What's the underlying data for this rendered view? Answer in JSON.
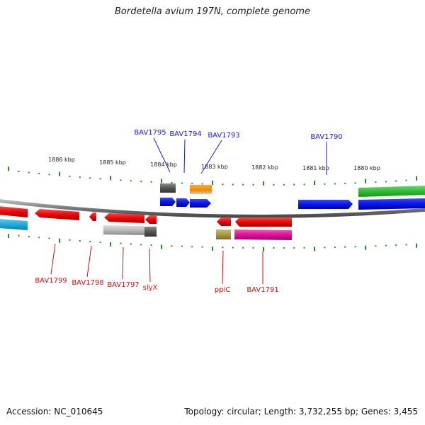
{
  "title": "Bordetella avium 197N, complete genome",
  "footer": {
    "accession": "Accession: NC_010645",
    "topology": "Topology: circular; Length: 3,732,255 bp; Genes: 3,455"
  },
  "scale_labels": [
    "1886 kbp",
    "1885 kbp",
    "1884 kbp",
    "1883 kbp",
    "1882 kbp",
    "1881 kbp",
    "1880 kbp"
  ],
  "gene_labels": {
    "forward": [
      "BAV1795",
      "BAV1794",
      "BAV1793",
      "BAV1790"
    ],
    "reverse": [
      "BAV1799",
      "BAV1798",
      "BAV1797",
      "slyX",
      "ppiC",
      "BAV1791"
    ]
  },
  "colors": {
    "forward_label": "#1a1acc",
    "reverse_label": "#cc1111",
    "tick": "#2a8a2a",
    "backbone": "#888888",
    "cds_forward": "#0a1aee",
    "cds_reverse": "#ee0a0a",
    "green_block": "#33bb33",
    "cyan_block": "#22aadd",
    "gray_block": "#b8b8b8",
    "dark_gray_block": "#555555",
    "orange_block": "#ee8800",
    "olive_block": "#a89a44",
    "magenta_block": "#dd1199"
  }
}
